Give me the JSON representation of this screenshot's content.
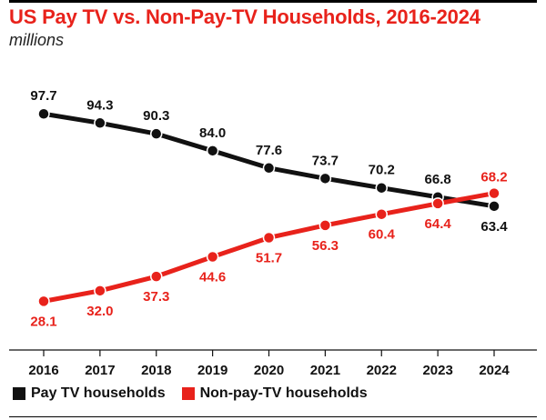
{
  "title": "US Pay TV vs. Non-Pay-TV Households, 2016-2024",
  "subtitle": "millions",
  "colors": {
    "accent": "#e8221b",
    "black": "#111111"
  },
  "chart_data": {
    "type": "line",
    "title": "US Pay TV vs. Non-Pay-TV Households, 2016-2024",
    "subtitle": "millions",
    "x": [
      "2016",
      "2017",
      "2018",
      "2019",
      "2020",
      "2021",
      "2022",
      "2023",
      "2024"
    ],
    "series": [
      {
        "name": "Pay TV households",
        "color": "#111111",
        "values": [
          97.7,
          94.3,
          90.3,
          84.0,
          77.6,
          73.7,
          70.2,
          66.8,
          63.4
        ],
        "labels": [
          "97.7",
          "94.3",
          "90.3",
          "84.0",
          "77.6",
          "73.7",
          "70.2",
          "66.8",
          "63.4"
        ]
      },
      {
        "name": "Non-pay-TV households",
        "color": "#e8221b",
        "values": [
          28.1,
          32.0,
          37.3,
          44.6,
          51.7,
          56.3,
          60.4,
          64.4,
          68.2
        ],
        "labels": [
          "28.1",
          "32.0",
          "37.3",
          "44.6",
          "51.7",
          "56.3",
          "60.4",
          "64.4",
          "68.2"
        ]
      }
    ],
    "ylim": [
      10,
      115
    ],
    "grid": false,
    "legend": "bottom-left"
  }
}
